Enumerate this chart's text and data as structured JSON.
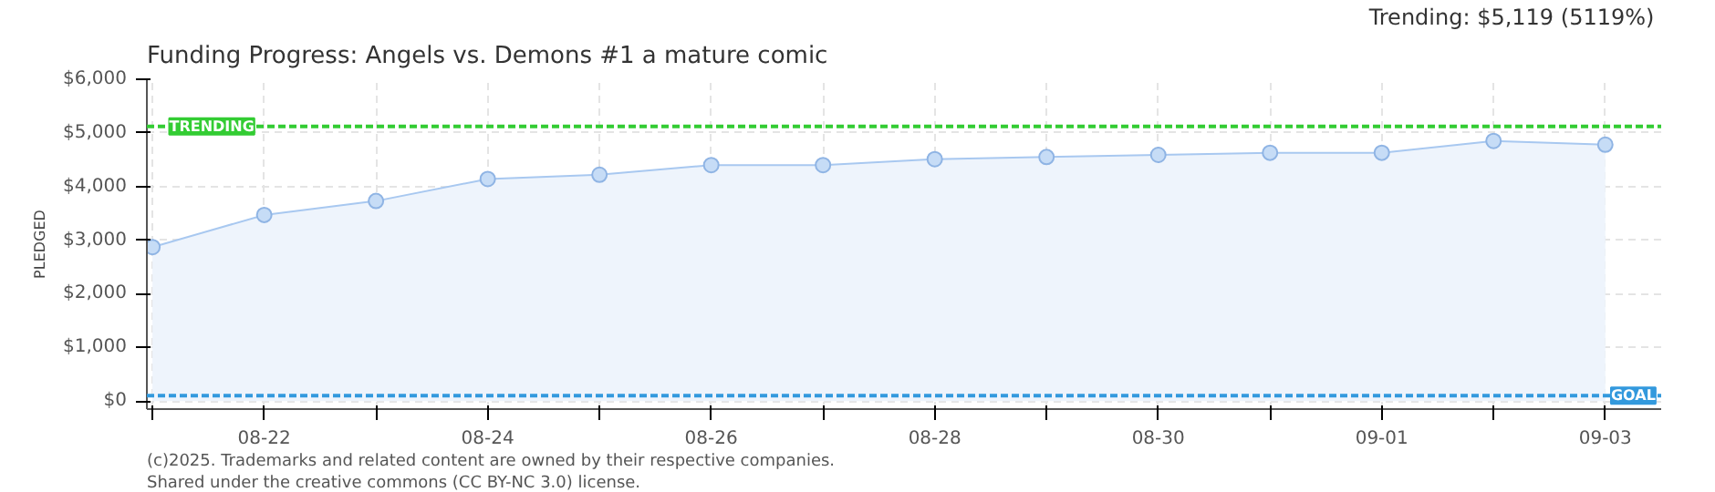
{
  "chart_data": {
    "type": "area",
    "title": "Funding Progress: Angels vs. Demons #1    a mature comic",
    "ylabel": "PLEDGED",
    "annotations": [
      "Trending:  $5,119 (5119%)",
      "(c)2025. Trademarks and related content are owned by their respective companies.",
      "Shared under the creative commons (CC BY-NC 3.0) license."
    ],
    "categories": [
      null,
      "08-22",
      null,
      "08-24",
      null,
      "08-26",
      null,
      "08-28",
      null,
      "08-30",
      null,
      "09-01",
      null,
      "09-03"
    ],
    "series": [
      {
        "color": "#a8c8f0",
        "values": [
          2870,
          3470,
          3730,
          4140,
          4220,
          4400,
          4400,
          4510,
          4550,
          4590,
          4630,
          4630,
          4850,
          4780
        ]
      }
    ],
    "ylim": [
      -150,
      6000
    ],
    "yticks": [
      {
        "value": 0,
        "label": "$0"
      },
      {
        "value": 1000,
        "label": "$1,000"
      },
      {
        "value": 2000,
        "label": "$2,000"
      },
      {
        "value": 3000,
        "label": "$3,000"
      },
      {
        "value": 4000,
        "label": "$4,000"
      },
      {
        "value": 5000,
        "label": "$5,000"
      },
      {
        "value": 6000,
        "label": "$6,000"
      }
    ],
    "ref_lines": [
      {
        "axis": "y",
        "value": 5119,
        "label": "TRENDING",
        "color": "#33cc33",
        "line_style": "dashed"
      },
      {
        "axis": "y",
        "value": 100,
        "label": "GOAL",
        "color": "#3399dd",
        "line_style": "dashed"
      }
    ],
    "grid": true,
    "marker": "circle"
  }
}
